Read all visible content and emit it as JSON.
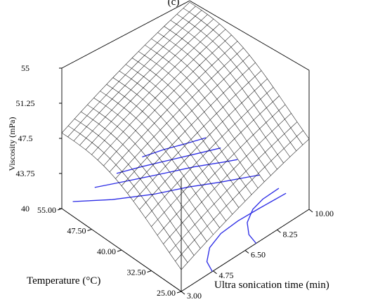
{
  "chart_data": {
    "type": "surface3d",
    "panel_label": "(c)",
    "title": "",
    "xlabel": "Ultra sonication time (min)",
    "ylabel": "Temperature (°C)",
    "zlabel": "Viscosity (mPa)",
    "x_ticks": [
      "3.00",
      "4.75",
      "6.50",
      "8.25",
      "10.00"
    ],
    "y_ticks": [
      "25.00",
      "32.50",
      "40.00",
      "47.50",
      "55.00"
    ],
    "z_ticks": [
      "40",
      "43.75",
      "47.5",
      "51.25",
      "55"
    ],
    "xlim": [
      3,
      10
    ],
    "ylim": [
      25,
      55
    ],
    "zlim": [
      40,
      55
    ],
    "surface_colors": {
      "mesh": "#111111",
      "contour": "#2d2de6"
    },
    "contour_levels": [
      {
        "level": 44.6,
        "points": [
          [
            4.7,
            25
          ],
          [
            4.95,
            27.5
          ],
          [
            5.6,
            29.8
          ],
          [
            6.5,
            31.1
          ],
          [
            7.5,
            31.4
          ],
          [
            8.6,
            31.2
          ],
          [
            10,
            30.8
          ]
        ]
      },
      {
        "level": 46.2,
        "points": [
          [
            7.1,
            25
          ],
          [
            7.25,
            27.5
          ],
          [
            7.7,
            30.0
          ],
          [
            8.4,
            31.8
          ],
          [
            9.1,
            32.5
          ],
          [
            10,
            32.6
          ]
        ]
      },
      {
        "level": 47.8,
        "points": [
          [
            3.6,
            55
          ],
          [
            4.8,
            50.6
          ],
          [
            6.2,
            46.6
          ],
          [
            7.5,
            43.7
          ],
          [
            8.6,
            40.8
          ],
          [
            9.6,
            38.4
          ],
          [
            10,
            37.4
          ]
        ]
      },
      {
        "level": 49.2,
        "points": [
          [
            4.8,
            55
          ],
          [
            5.9,
            52.5
          ],
          [
            7.2,
            49.6
          ],
          [
            8.5,
            46.8
          ],
          [
            9.5,
            44.2
          ],
          [
            10,
            43.0
          ]
        ]
      },
      {
        "level": 50.5,
        "points": [
          [
            6.0,
            55
          ],
          [
            7.0,
            53.2
          ],
          [
            8.1,
            51.0
          ],
          [
            9.2,
            48.8
          ],
          [
            10,
            47.2
          ]
        ]
      },
      {
        "level": 51.8,
        "points": [
          [
            7.4,
            55
          ],
          [
            8.3,
            53.8
          ],
          [
            9.2,
            52.2
          ],
          [
            10,
            50.9
          ]
        ]
      }
    ]
  }
}
